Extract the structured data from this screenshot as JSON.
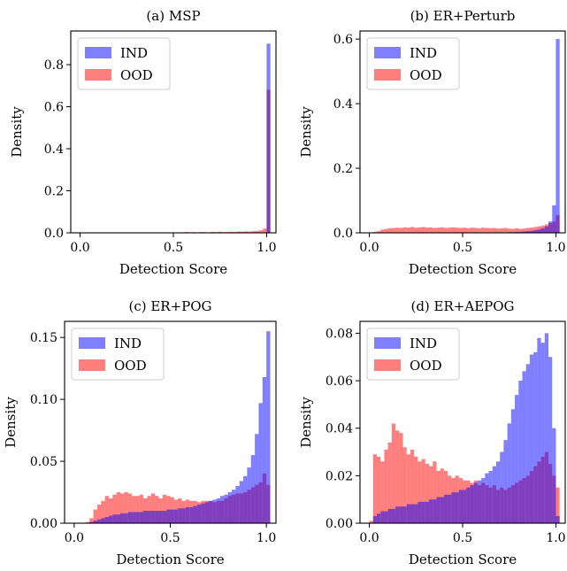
{
  "colors": {
    "ind": "#0000ff",
    "ood": "#ff0000",
    "overlap": "#b0287a"
  },
  "chart_data": [
    {
      "type": "bar",
      "title": "(a) MSP",
      "xlabel": "Detection Score",
      "ylabel": "Density",
      "xlim": [
        -0.05,
        1.05
      ],
      "ylim": [
        0,
        0.96
      ],
      "xticks": [
        "0.0",
        "0.5",
        "1.0"
      ],
      "yticks": [
        "0.0",
        "0.2",
        "0.4",
        "0.6",
        "0.8"
      ],
      "legend": {
        "position": "top-left",
        "entries": [
          "IND",
          "OOD"
        ]
      },
      "bin_start": 0.0,
      "bin_width": 0.02,
      "series": [
        {
          "name": "IND",
          "values": [
            0,
            0,
            0,
            0,
            0,
            0,
            0,
            0,
            0,
            0,
            0,
            0,
            0,
            0,
            0,
            0,
            0,
            0,
            0,
            0,
            0,
            0,
            0,
            0,
            0,
            0,
            0,
            0,
            0,
            0,
            0,
            0,
            0,
            0,
            0,
            0,
            0,
            0,
            0,
            0,
            0,
            0,
            0,
            0,
            0,
            0,
            0,
            0,
            0.001,
            0.002,
            0.9
          ]
        },
        {
          "name": "OOD",
          "values": [
            0,
            0,
            0,
            0,
            0,
            0,
            0,
            0,
            0,
            0,
            0,
            0,
            0,
            0,
            0,
            0,
            0,
            0,
            0,
            0,
            0,
            0,
            0,
            0,
            0,
            0,
            0,
            0.002,
            0.004,
            0.002,
            0.003,
            0.002,
            0.004,
            0.003,
            0.002,
            0.004,
            0.003,
            0.005,
            0.003,
            0.004,
            0.005,
            0.004,
            0.006,
            0.005,
            0.007,
            0.006,
            0.008,
            0.009,
            0.012,
            0.02,
            0.68
          ]
        }
      ]
    },
    {
      "type": "bar",
      "title": "(b) ER+Perturb",
      "xlabel": "Detection Score",
      "ylabel": "Density",
      "xlim": [
        -0.05,
        1.05
      ],
      "ylim": [
        0,
        0.625
      ],
      "xticks": [
        "0.0",
        "0.5",
        "1.0"
      ],
      "yticks": [
        "0.0",
        "0.2",
        "0.4",
        "0.6"
      ],
      "legend": {
        "position": "top-left",
        "entries": [
          "IND",
          "OOD"
        ]
      },
      "bin_start": 0.0,
      "bin_width": 0.02,
      "series": [
        {
          "name": "IND",
          "values": [
            0,
            0,
            0,
            0,
            0,
            0,
            0,
            0,
            0,
            0,
            0,
            0,
            0,
            0,
            0,
            0,
            0,
            0,
            0,
            0,
            0,
            0,
            0,
            0,
            0,
            0,
            0,
            0,
            0,
            0,
            0,
            0,
            0,
            0,
            0,
            0,
            0.001,
            0.002,
            0.002,
            0.003,
            0.003,
            0.004,
            0.005,
            0.006,
            0.008,
            0.01,
            0.014,
            0.02,
            0.035,
            0.085,
            0.6
          ]
        },
        {
          "name": "OOD",
          "values": [
            0,
            0.003,
            0.005,
            0.01,
            0.012,
            0.014,
            0.015,
            0.016,
            0.015,
            0.017,
            0.016,
            0.018,
            0.016,
            0.017,
            0.018,
            0.016,
            0.017,
            0.015,
            0.016,
            0.017,
            0.015,
            0.016,
            0.017,
            0.016,
            0.015,
            0.016,
            0.014,
            0.016,
            0.015,
            0.014,
            0.016,
            0.015,
            0.014,
            0.015,
            0.013,
            0.014,
            0.015,
            0.013,
            0.012,
            0.014,
            0.012,
            0.013,
            0.015,
            0.016,
            0.018,
            0.02,
            0.022,
            0.026,
            0.03,
            0.035,
            0.055
          ]
        }
      ]
    },
    {
      "type": "bar",
      "title": "(c) ER+POG",
      "xlabel": "Detection Score",
      "ylabel": "Density",
      "xlim": [
        -0.05,
        1.05
      ],
      "ylim": [
        0,
        0.163
      ],
      "xticks": [
        "0.0",
        "0.5",
        "1.0"
      ],
      "yticks": [
        "0.00",
        "0.05",
        "0.10",
        "0.15"
      ],
      "legend": {
        "position": "top-left",
        "entries": [
          "IND",
          "OOD"
        ]
      },
      "bin_start": 0.0,
      "bin_width": 0.02,
      "series": [
        {
          "name": "IND",
          "values": [
            0,
            0,
            0,
            0,
            0.001,
            0.002,
            0.003,
            0.004,
            0.005,
            0.006,
            0.007,
            0.007,
            0.008,
            0.008,
            0.009,
            0.009,
            0.009,
            0.009,
            0.01,
            0.01,
            0.01,
            0.01,
            0.01,
            0.01,
            0.011,
            0.011,
            0.011,
            0.012,
            0.012,
            0.013,
            0.013,
            0.014,
            0.015,
            0.016,
            0.017,
            0.018,
            0.019,
            0.02,
            0.022,
            0.023,
            0.025,
            0.027,
            0.03,
            0.034,
            0.038,
            0.045,
            0.055,
            0.072,
            0.097,
            0.118,
            0.155
          ]
        },
        {
          "name": "OOD",
          "values": [
            0,
            0,
            0,
            0.001,
            0.004,
            0.011,
            0.015,
            0.018,
            0.022,
            0.02,
            0.023,
            0.025,
            0.024,
            0.025,
            0.024,
            0.022,
            0.022,
            0.023,
            0.02,
            0.022,
            0.024,
            0.022,
            0.02,
            0.023,
            0.022,
            0.021,
            0.019,
            0.02,
            0.018,
            0.019,
            0.018,
            0.018,
            0.017,
            0.018,
            0.018,
            0.018,
            0.017,
            0.018,
            0.018,
            0.02,
            0.022,
            0.023,
            0.024,
            0.024,
            0.025,
            0.027,
            0.029,
            0.031,
            0.033,
            0.04,
            0.031
          ]
        }
      ]
    },
    {
      "type": "bar",
      "title": "(d) ER+AEPOG",
      "xlabel": "Detection Score",
      "ylabel": "Density",
      "xlim": [
        -0.05,
        1.05
      ],
      "ylim": [
        0,
        0.085
      ],
      "xticks": [
        "0.0",
        "0.5",
        "1.0"
      ],
      "yticks": [
        "0.00",
        "0.02",
        "0.04",
        "0.06",
        "0.08"
      ],
      "legend": {
        "position": "top-left",
        "entries": [
          "IND",
          "OOD"
        ]
      },
      "bin_start": 0.0,
      "bin_width": 0.02,
      "series": [
        {
          "name": "IND",
          "values": [
            0,
            0.003,
            0.004,
            0.005,
            0.005,
            0.006,
            0.006,
            0.007,
            0.007,
            0.007,
            0.008,
            0.008,
            0.008,
            0.009,
            0.009,
            0.009,
            0.01,
            0.01,
            0.011,
            0.011,
            0.012,
            0.012,
            0.013,
            0.013,
            0.014,
            0.014,
            0.015,
            0.016,
            0.017,
            0.018,
            0.019,
            0.021,
            0.022,
            0.024,
            0.026,
            0.03,
            0.035,
            0.042,
            0.048,
            0.054,
            0.06,
            0.064,
            0.067,
            0.071,
            0.072,
            0.078,
            0.076,
            0.08,
            0.07,
            0.04,
            0.003
          ]
        },
        {
          "name": "OOD",
          "values": [
            0.001,
            0.029,
            0.028,
            0.026,
            0.031,
            0.034,
            0.042,
            0.039,
            0.038,
            0.032,
            0.029,
            0.031,
            0.028,
            0.026,
            0.027,
            0.025,
            0.024,
            0.026,
            0.022,
            0.023,
            0.022,
            0.02,
            0.019,
            0.02,
            0.019,
            0.018,
            0.018,
            0.017,
            0.018,
            0.016,
            0.017,
            0.016,
            0.015,
            0.016,
            0.014,
            0.015,
            0.014,
            0.015,
            0.016,
            0.017,
            0.018,
            0.019,
            0.02,
            0.022,
            0.024,
            0.026,
            0.028,
            0.03,
            0.025,
            0.02,
            0.015
          ]
        }
      ]
    }
  ]
}
